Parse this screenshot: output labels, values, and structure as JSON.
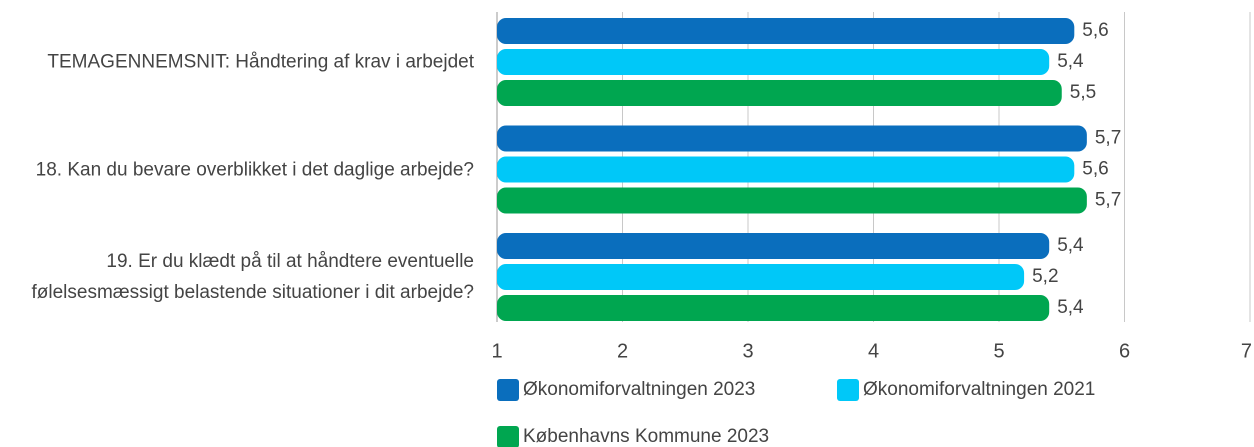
{
  "chart_data": {
    "type": "bar",
    "orientation": "horizontal",
    "categories": [
      "TEMAGENNEMSNIT: Håndtering af krav i arbejdet",
      "18. Kan du bevare overblikket i det daglige arbejde?",
      "19. Er du klædt på til at håndtere eventuelle følelsesmæssigt belastende situationer i dit arbejde?"
    ],
    "series": [
      {
        "name": "Økonomiforvaltningen 2023",
        "color": "#0a6ebd",
        "values": [
          5.6,
          5.7,
          5.4
        ],
        "value_labels": [
          "5,6",
          "5,7",
          "5,4"
        ]
      },
      {
        "name": "Økonomiforvaltningen 2021",
        "color": "#00c8f8",
        "values": [
          5.4,
          5.6,
          5.2
        ],
        "value_labels": [
          "5,4",
          "5,6",
          "5,2"
        ]
      },
      {
        "name": "Københavns Kommune 2023",
        "color": "#00a650",
        "values": [
          5.5,
          5.7,
          5.4
        ],
        "value_labels": [
          "5,5",
          "5,7",
          "5,4"
        ]
      }
    ],
    "xlim": [
      1,
      7
    ],
    "xticks": [
      1,
      2,
      3,
      4,
      5,
      6,
      7
    ],
    "grid": true
  }
}
